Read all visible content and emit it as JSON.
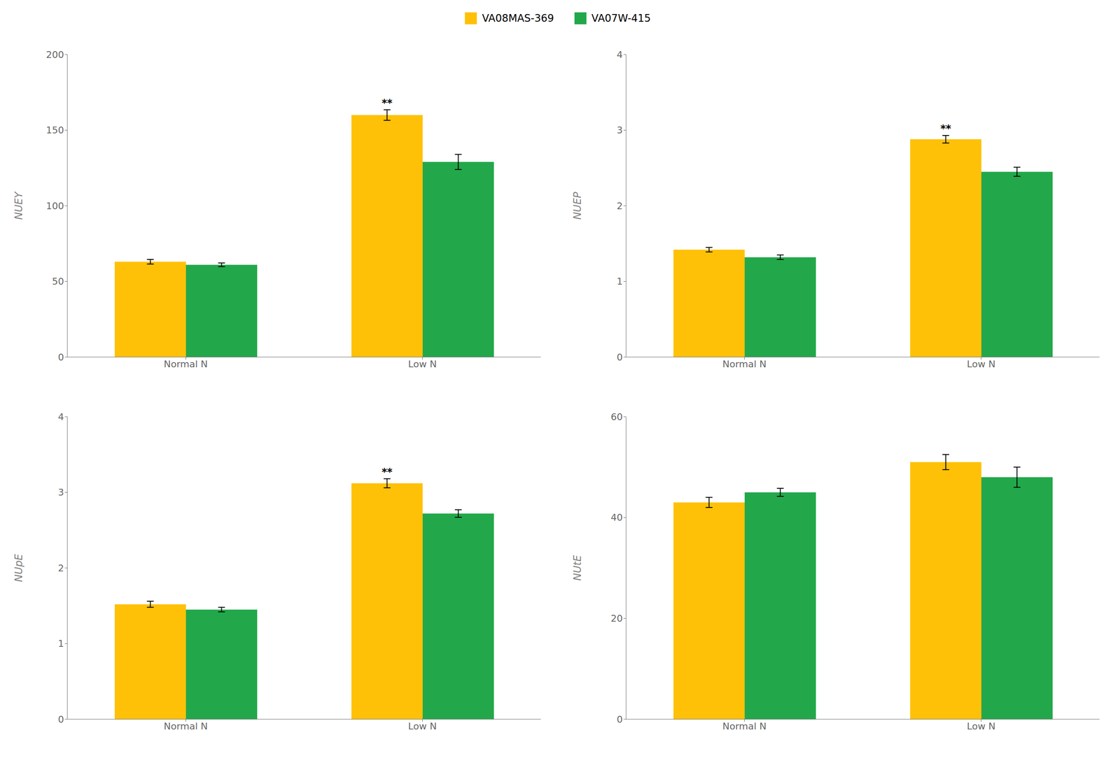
{
  "chart_data": [
    {
      "type": "bar",
      "ylabel": "NUEY",
      "categories": [
        "Normal N",
        "Low N"
      ],
      "ylim": [
        0,
        200
      ],
      "yticks": [
        0,
        50,
        100,
        150,
        200
      ],
      "grid": false,
      "series": [
        {
          "name": "VA08MAS-369",
          "color": "#FFC107",
          "values": [
            63,
            160
          ],
          "errors": [
            1.5,
            3.5
          ]
        },
        {
          "name": "VA07W-415",
          "color": "#22A84A",
          "values": [
            61,
            129
          ],
          "errors": [
            1.2,
            5.0
          ]
        }
      ],
      "annotations": [
        {
          "text": "**",
          "category": "Low N",
          "series": "VA08MAS-369"
        }
      ]
    },
    {
      "type": "bar",
      "ylabel": "NUEP",
      "categories": [
        "Normal N",
        "Low N"
      ],
      "ylim": [
        0,
        4
      ],
      "yticks": [
        0,
        1,
        2,
        3,
        4
      ],
      "grid": false,
      "series": [
        {
          "name": "VA08MAS-369",
          "color": "#FFC107",
          "values": [
            1.42,
            2.88
          ],
          "errors": [
            0.03,
            0.05
          ]
        },
        {
          "name": "VA07W-415",
          "color": "#22A84A",
          "values": [
            1.32,
            2.45
          ],
          "errors": [
            0.03,
            0.06
          ]
        }
      ],
      "annotations": [
        {
          "text": "**",
          "category": "Low N",
          "series": "VA08MAS-369"
        }
      ]
    },
    {
      "type": "bar",
      "ylabel": "NUpE",
      "categories": [
        "Normal N",
        "Low N"
      ],
      "ylim": [
        0,
        4
      ],
      "yticks": [
        0,
        1,
        2,
        3,
        4
      ],
      "grid": false,
      "series": [
        {
          "name": "VA08MAS-369",
          "color": "#FFC107",
          "values": [
            1.52,
            3.12
          ],
          "errors": [
            0.04,
            0.06
          ]
        },
        {
          "name": "VA07W-415",
          "color": "#22A84A",
          "values": [
            1.45,
            2.72
          ],
          "errors": [
            0.03,
            0.05
          ]
        }
      ],
      "annotations": [
        {
          "text": "**",
          "category": "Low N",
          "series": "VA08MAS-369"
        }
      ]
    },
    {
      "type": "bar",
      "ylabel": "NUtE",
      "categories": [
        "Normal N",
        "Low N"
      ],
      "ylim": [
        0,
        60
      ],
      "yticks": [
        0,
        20,
        40,
        60
      ],
      "grid": false,
      "series": [
        {
          "name": "VA08MAS-369",
          "color": "#FFC107",
          "values": [
            43,
            51
          ],
          "errors": [
            1.0,
            1.5
          ]
        },
        {
          "name": "VA07W-415",
          "color": "#22A84A",
          "values": [
            45,
            48
          ],
          "errors": [
            0.8,
            2.0
          ]
        }
      ],
      "annotations": []
    }
  ]
}
